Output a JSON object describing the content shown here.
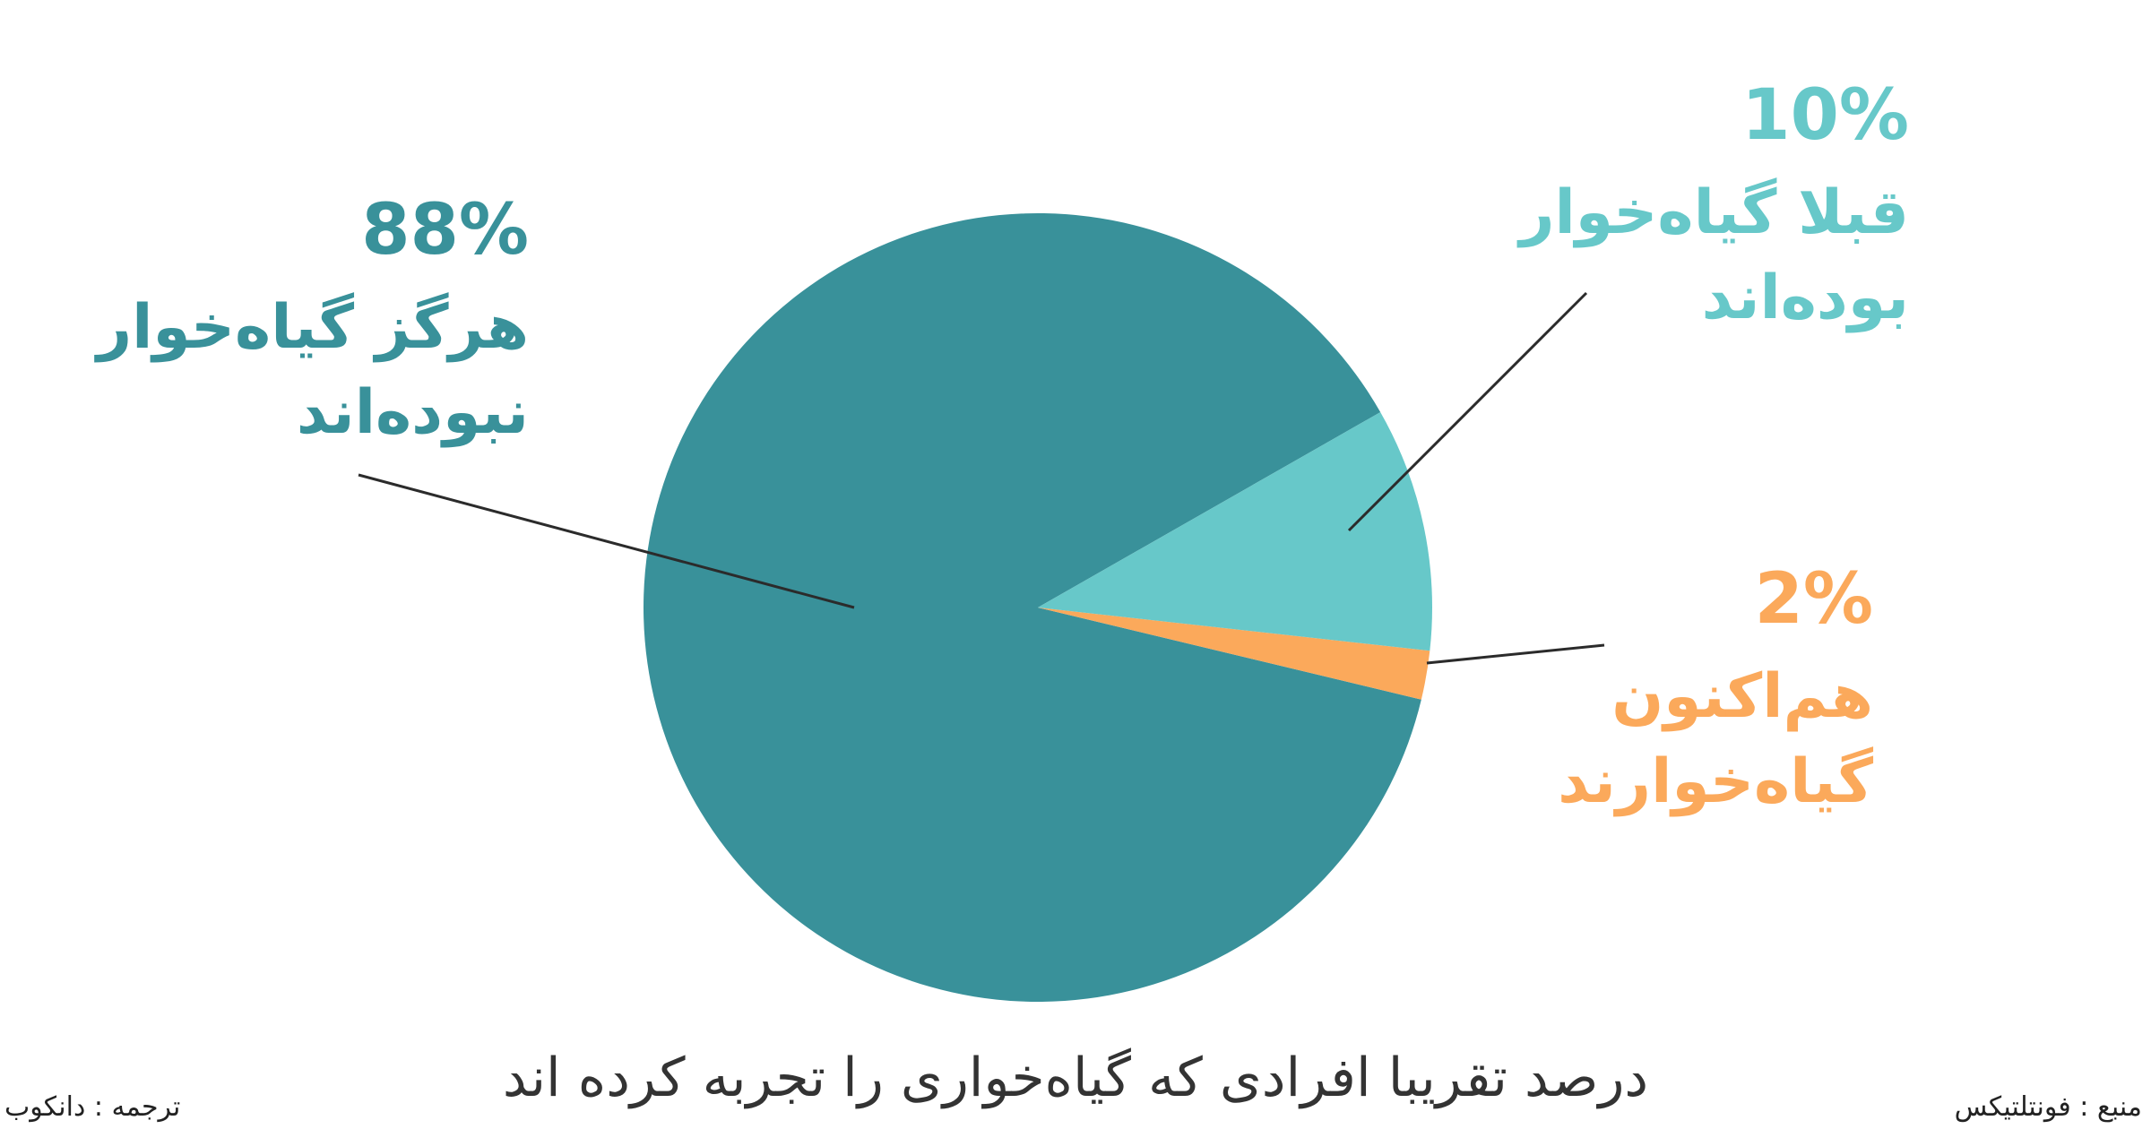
{
  "chart_data": {
    "type": "pie",
    "title": "درصد تقریبا افرادی که گیاه‌خواری را تجربه کرده اند",
    "slices": [
      {
        "value": 88,
        "label": "88%",
        "text_lines": [
          "هرگز گیاه‌خوار",
          "نبوده‌اند"
        ],
        "color": "#39919A"
      },
      {
        "value": 10,
        "label": "10%",
        "text_lines": [
          "قبلا گیاه‌خوار",
          "بوده‌اند"
        ],
        "color": "#67C8C9"
      },
      {
        "value": 2,
        "label": "2%",
        "text_lines": [
          "هم‌اکنون",
          "گیاه‌خوارند"
        ],
        "color": "#FBA95B"
      }
    ]
  },
  "footer": {
    "source": "منبع : فونتلتیکس",
    "translator": "ترجمه : دانکوب"
  }
}
